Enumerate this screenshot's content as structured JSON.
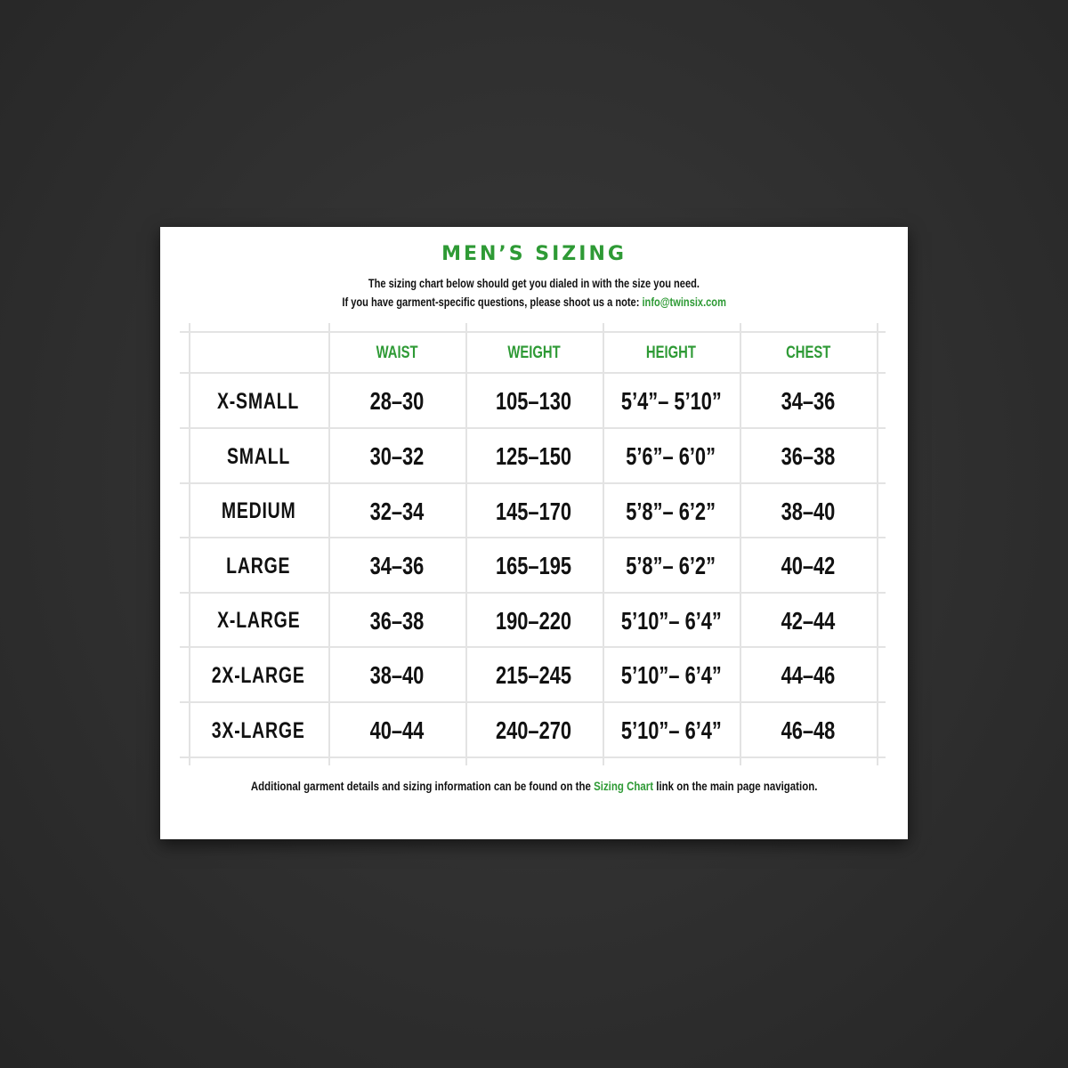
{
  "title": "MEN’S SIZING",
  "intro_line1": "The sizing chart below should get you dialed in with the size you need.",
  "intro_line2": "If you have garment-specific questions, please shoot us a note:",
  "email": "info@twinsix.com",
  "columns": [
    "WAIST",
    "WEIGHT",
    "HEIGHT",
    "CHEST"
  ],
  "rows": [
    {
      "size": "X-SMALL",
      "waist": "28–30",
      "weight": "105–130",
      "height": "5’4”– 5’10”",
      "chest": "34–36"
    },
    {
      "size": "SMALL",
      "waist": "30–32",
      "weight": "125–150",
      "height": "5’6”– 6’0”",
      "chest": "36–38"
    },
    {
      "size": "MEDIUM",
      "waist": "32–34",
      "weight": "145–170",
      "height": "5’8”– 6’2”",
      "chest": "38–40"
    },
    {
      "size": "LARGE",
      "waist": "34–36",
      "weight": "165–195",
      "height": "5’8”– 6’2”",
      "chest": "40–42"
    },
    {
      "size": "X-LARGE",
      "waist": "36–38",
      "weight": "190–220",
      "height": "5’10”– 6’4”",
      "chest": "42–44"
    },
    {
      "size": "2X-LARGE",
      "waist": "38–40",
      "weight": "215–245",
      "height": "5’10”– 6’4”",
      "chest": "44–46"
    },
    {
      "size": "3X-LARGE",
      "waist": "40–44",
      "weight": "240–270",
      "height": "5’10”– 6’4”",
      "chest": "46–48"
    }
  ],
  "footer_before": "Additional garment details and sizing information can be found on the",
  "footer_link": "Sizing Chart",
  "footer_after": "link on the main page navigation.",
  "colors": {
    "accent": "#2e9a35",
    "background": "#2f2f2f"
  }
}
